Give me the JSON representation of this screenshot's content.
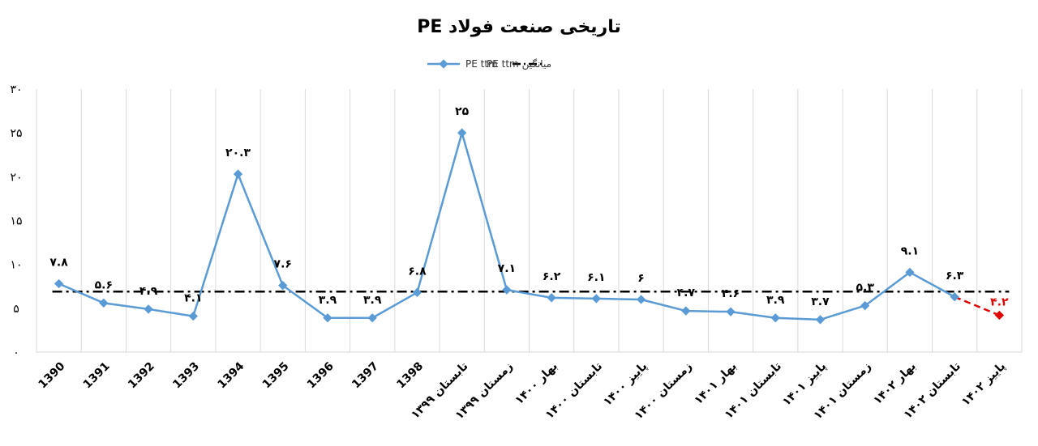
{
  "chart_data": {
    "type": "line",
    "title": "PE تاریخی صنعت فولاد",
    "xlabel": "",
    "ylabel": "",
    "ylim": [
      0,
      30
    ],
    "y_ticks": [
      "۰",
      "۵",
      "۱۰",
      "۱۵",
      "۲۰",
      "۲۵",
      "۳۰"
    ],
    "y_tick_values": [
      0,
      5,
      10,
      15,
      20,
      25,
      30
    ],
    "grid": "vertical",
    "legend_position": "top-center",
    "categories": [
      "1390",
      "1391",
      "1392",
      "1393",
      "1394",
      "1395",
      "1396",
      "1397",
      "1398",
      "تابستان ۱۳۹۹",
      "زمستان ۱۳۹۹",
      "بهار ۱۴۰۰",
      "تابستان ۱۴۰۰",
      "پاییز ۱۴۰۰",
      "زمستان ۱۴۰۰",
      "بهار ۱۴۰۱",
      "تابستان ۱۴۰۱",
      "پاییز ۱۴۰۱",
      "زمستان ۱۴۰۱",
      "بهار ۱۴۰۲",
      "تابستان ۱۴۰۲",
      "پاییز ۱۴۰۲"
    ],
    "series": [
      {
        "name": "PE ttm",
        "color": "#5b9bd5",
        "values": [
          7.8,
          5.6,
          4.9,
          4.1,
          20.3,
          7.6,
          3.9,
          3.9,
          6.8,
          25,
          7.1,
          6.2,
          6.1,
          6,
          4.7,
          4.6,
          3.9,
          3.7,
          5.3,
          9.1,
          6.3,
          null
        ],
        "labels": [
          "۷.۸",
          "۵.۶",
          "۴.۹",
          "۴.۱",
          "۲۰.۳",
          "۷.۶",
          "۳.۹",
          "۳.۹",
          "۶.۸",
          "۲۵",
          "۷.۱",
          "۶.۲",
          "۶.۱",
          "۶",
          "۴.۷",
          "۴.۶",
          "۳.۹",
          "۳.۷",
          "۵.۳",
          "۹.۱",
          "۶.۳",
          ""
        ]
      },
      {
        "name": "",
        "color": "#e00000",
        "style": "dashed",
        "values": [
          null,
          null,
          null,
          null,
          null,
          null,
          null,
          null,
          null,
          null,
          null,
          null,
          null,
          null,
          null,
          null,
          null,
          null,
          null,
          null,
          6.3,
          4.2
        ],
        "labels": [
          "",
          "",
          "",
          "",
          "",
          "",
          "",
          "",
          "",
          "",
          "",
          "",
          "",
          "",
          "",
          "",
          "",
          "",
          "",
          "",
          "",
          "۴.۲"
        ]
      },
      {
        "name": "میانگین PE ttm",
        "color": "#000000",
        "style": "dash-dot",
        "values": [
          6.9,
          6.9,
          6.9,
          6.9,
          6.9,
          6.9,
          6.9,
          6.9,
          6.9,
          6.9,
          6.9,
          6.9,
          6.9,
          6.9,
          6.9,
          6.9,
          6.9,
          6.9,
          6.9,
          6.9,
          6.9,
          6.9
        ]
      }
    ]
  }
}
